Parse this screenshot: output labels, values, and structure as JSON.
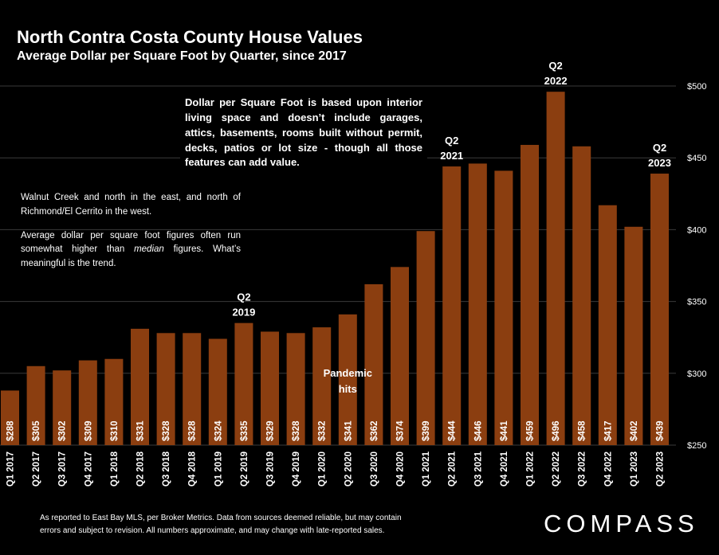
{
  "title": "North Contra Costa County House Values",
  "subtitle": "Average Dollar per Square Foot by Quarter, since 2017",
  "note_1": "Dollar per Square Foot is based upon interior living space and doesn’t include garages, attics, basements, rooms built without permit, decks, patios or lot size - though all those features can add value.",
  "note_2": {
    "line_1": "Walnut Creek and north in the east, and north of Richmond/El Cerrito in the west.",
    "line_2_before": "Average dollar per square foot figures often run somewhat higher than ",
    "line_2_em": "median",
    "line_2_after": " figures. What’s meaningful is the trend."
  },
  "footer": {
    "line_1": "As reported to East Bay MLS, per Broker Metrics. Data from sources deemed reliable, but may contain",
    "line_2": "errors and subject to revision. All numbers approximate, and may change with late-reported sales."
  },
  "logo": "COMPASS",
  "colors": {
    "background": "#000000",
    "bar": "#8B3E10",
    "gridline": "#3a3a3a",
    "text": "#ffffff"
  },
  "chart_data": {
    "type": "bar",
    "title": "North Contra Costa County House Values",
    "subtitle": "Average Dollar per Square Foot by Quarter, since 2017",
    "categories": [
      "Q1 2017",
      "Q2 2017",
      "Q3 2017",
      "Q4 2017",
      "Q1 2018",
      "Q2 2018",
      "Q3 2018",
      "Q4 2018",
      "Q1 2019",
      "Q2 2019",
      "Q3 2019",
      "Q4 2019",
      "Q1 2020",
      "Q2 2020",
      "Q3 2020",
      "Q4 2020",
      "Q1 2021",
      "Q2 2021",
      "Q3 2021",
      "Q4 2021",
      "Q1 2022",
      "Q2 2022",
      "Q3 2022",
      "Q4 2022",
      "Q1 2023",
      "Q2 2023"
    ],
    "values": [
      288,
      305,
      302,
      309,
      310,
      331,
      328,
      328,
      324,
      335,
      329,
      328,
      332,
      341,
      362,
      374,
      399,
      444,
      446,
      441,
      459,
      496,
      458,
      417,
      402,
      439
    ],
    "data_labels": [
      "$288",
      "$305",
      "$302",
      "$309",
      "$310",
      "$331",
      "$328",
      "$328",
      "$324",
      "$335",
      "$329",
      "$328",
      "$332",
      "$341",
      "$362",
      "$374",
      "$399",
      "$444",
      "$446",
      "$441",
      "$459",
      "$496",
      "$458",
      "$417",
      "$402",
      "$439"
    ],
    "ylim": [
      250,
      500
    ],
    "yticks": [
      250,
      300,
      350,
      400,
      450,
      500
    ],
    "ytick_labels": [
      "$250",
      "$300",
      "$350",
      "$400",
      "$450",
      "$500"
    ],
    "y_axis_side": "right",
    "grid": true,
    "legend": "none",
    "annotations": [
      {
        "category": "Q2 2019",
        "line_1": "Q2",
        "line_2": "2019"
      },
      {
        "category": "Q2 2021",
        "line_1": "Q2",
        "line_2": "2021"
      },
      {
        "category": "Q2 2022",
        "line_1": "Q2",
        "line_2": "2022"
      },
      {
        "category": "Q2 2023",
        "line_1": "Q2",
        "line_2": "2023"
      },
      {
        "category": "Q2 2020",
        "line_1": "Pandemic",
        "line_2": "hits"
      }
    ]
  }
}
